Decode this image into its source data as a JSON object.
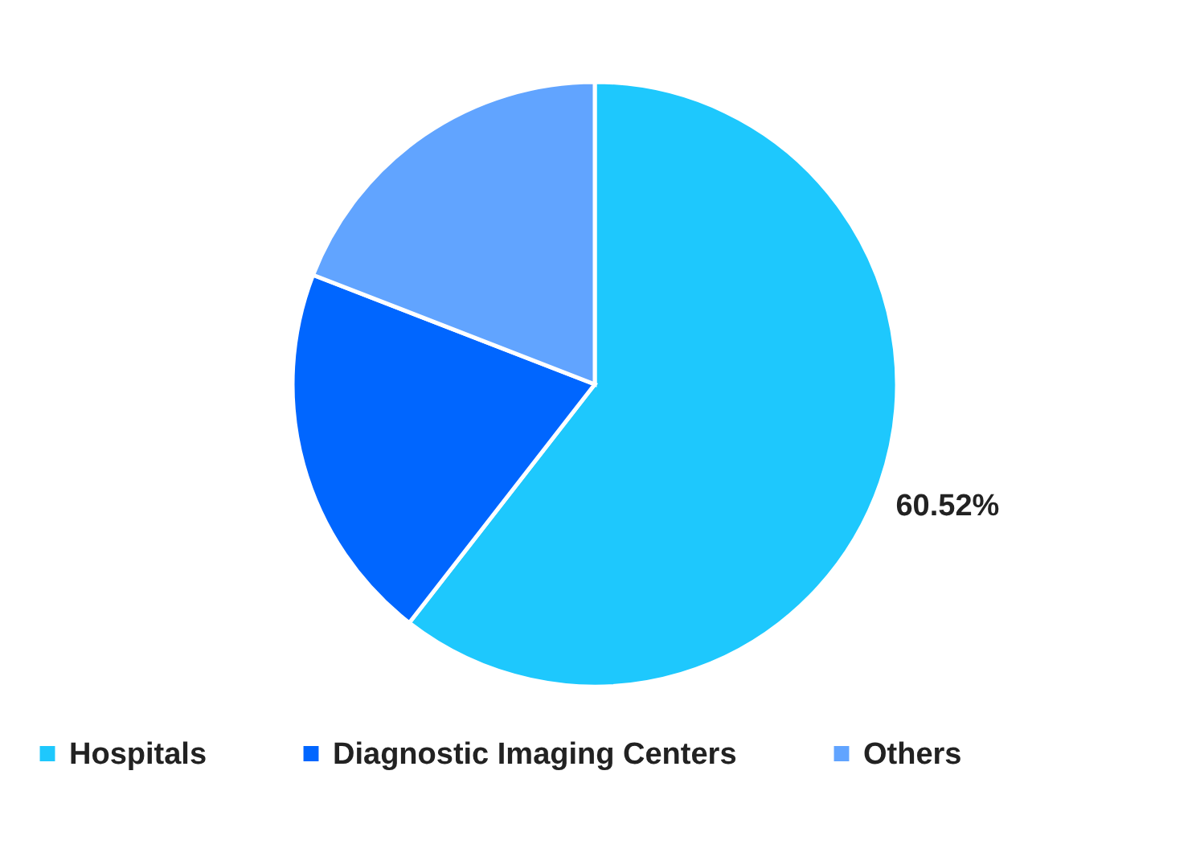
{
  "chart_data": {
    "type": "pie",
    "categories": [
      "Hospitals",
      "Diagnostic Imaging Centers",
      "Others"
    ],
    "values": [
      60.52,
      20.37,
      19.11
    ],
    "colors": [
      "#1ec8fd",
      "#0066ff",
      "#61a4ff"
    ],
    "value_labels": [
      "60.52%",
      null,
      null
    ],
    "legend": "bottom"
  }
}
